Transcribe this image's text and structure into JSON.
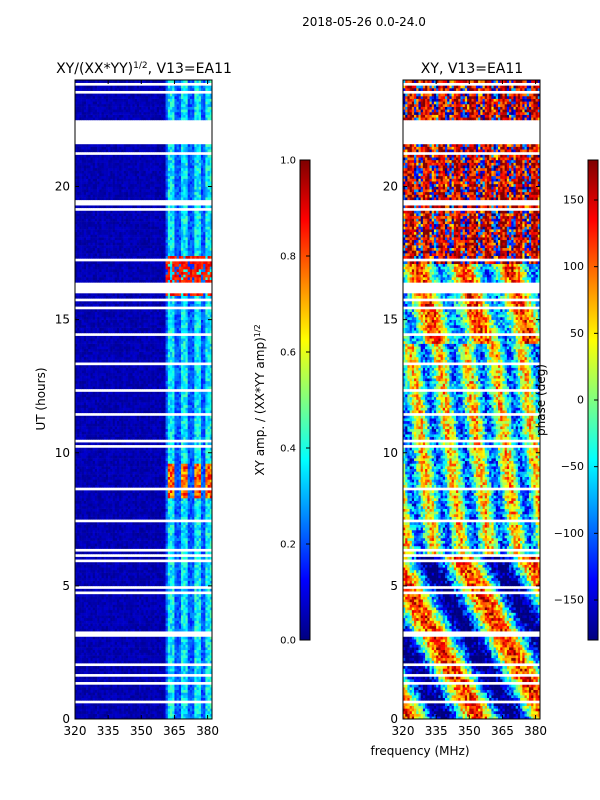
{
  "figure": {
    "suptitle": "2018-05-26 0.0-24.0",
    "xlabel_shared": "frequency (MHz)"
  },
  "colors": {
    "jet": [
      "#00007f",
      "#0000ff",
      "#0080ff",
      "#00ffff",
      "#80ff80",
      "#ffff00",
      "#ff8000",
      "#ff0000",
      "#7f0000"
    ],
    "background": "#ffffff",
    "flag": "#ffffff"
  },
  "chart_data": [
    {
      "type": "heatmap",
      "title_main": "XY/(XX*YY)",
      "title_sup": "1/2",
      "title_rest": ", V13=EA11",
      "xlabel": "",
      "ylabel": "UT (hours)",
      "xlim": [
        320,
        382
      ],
      "ylim": [
        0,
        24
      ],
      "xticks": [
        320,
        335,
        350,
        365,
        380
      ],
      "yticks": [
        0,
        5,
        10,
        15,
        20
      ],
      "colorbar": {
        "label": "XY amp. / (XX*YY amp)",
        "label_sup": "1/2",
        "range": [
          0.0,
          1.0
        ],
        "ticks": [
          "0.0",
          "0.2",
          "0.4",
          "0.6",
          "0.8",
          "1.0"
        ]
      },
      "data_description": "mostly low amplitude (~0.0-0.1) except 360-382 MHz band (~0.3-0.5) with hot spots ~0.8-0.9 near 16-17 UT and 8.5-9.5 UT"
    },
    {
      "type": "heatmap",
      "title_main": "XY, V13=EA11",
      "xlabel": "frequency (MHz)",
      "ylabel": "",
      "xlim": [
        320,
        382
      ],
      "ylim": [
        0,
        24
      ],
      "xticks": [
        320,
        335,
        350,
        365,
        380
      ],
      "yticks": [
        0,
        5,
        10,
        15,
        20
      ],
      "colorbar": {
        "label": "phase (deg)",
        "range": [
          -180,
          180
        ],
        "ticks": [
          "-150",
          "-100",
          "-50",
          "0",
          "50",
          "100",
          "150"
        ]
      },
      "data_description": "phase varies across full range; red/dark-red dominant above 17 UT, mixed cyan/yellow/green below"
    }
  ]
}
